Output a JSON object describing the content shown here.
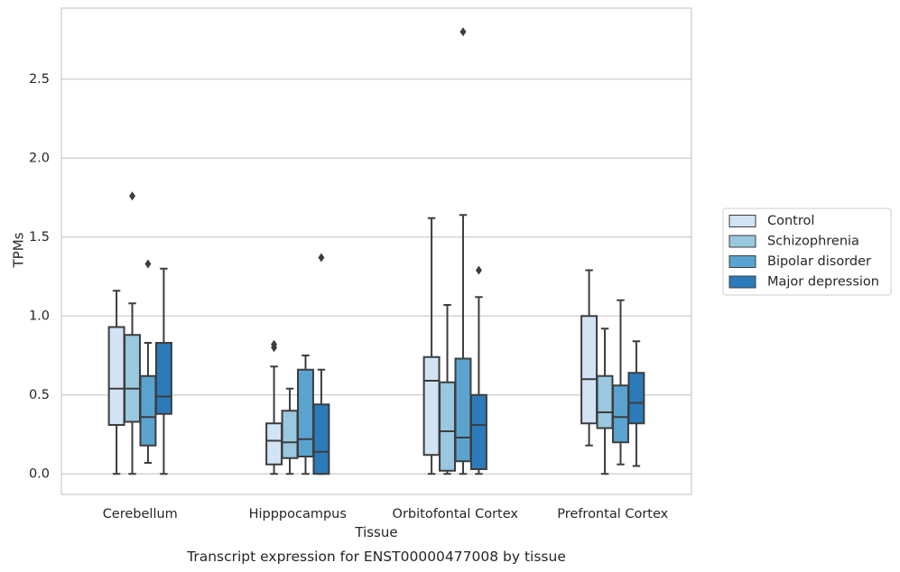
{
  "chart_data": {
    "type": "boxplot",
    "title": "",
    "caption": "Transcript expression for ENST00000477008 by tissue",
    "xlabel": "Tissue",
    "ylabel": "TPMs",
    "ylim": [
      -0.13,
      2.95
    ],
    "yticks": [
      0.0,
      0.5,
      1.0,
      1.5,
      2.0,
      2.5
    ],
    "ytick_labels": [
      "0.0",
      "0.5",
      "1.0",
      "1.5",
      "2.0",
      "2.5"
    ],
    "grid": "horizontal",
    "legend_position": "right",
    "categories": [
      "Cerebellum",
      "Hipppocampus",
      "Orbitofontal Cortex",
      "Prefrontal Cortex"
    ],
    "series": [
      {
        "name": "Control",
        "color": "#d2e3f3",
        "boxes": [
          {
            "whislo": 0.0,
            "q1": 0.31,
            "med": 0.54,
            "q3": 0.93,
            "whishi": 1.16,
            "fliers": []
          },
          {
            "whislo": 0.0,
            "q1": 0.06,
            "med": 0.21,
            "q3": 0.32,
            "whishi": 0.68,
            "fliers": [
              0.8,
              0.82
            ]
          },
          {
            "whislo": 0.0,
            "q1": 0.12,
            "med": 0.59,
            "q3": 0.74,
            "whishi": 1.62,
            "fliers": []
          },
          {
            "whislo": 0.18,
            "q1": 0.32,
            "med": 0.6,
            "q3": 1.0,
            "whishi": 1.29,
            "fliers": []
          }
        ]
      },
      {
        "name": "Schizophrenia",
        "color": "#9ac8e0",
        "boxes": [
          {
            "whislo": 0.0,
            "q1": 0.33,
            "med": 0.54,
            "q3": 0.88,
            "whishi": 1.08,
            "fliers": [
              1.76
            ]
          },
          {
            "whislo": 0.0,
            "q1": 0.1,
            "med": 0.2,
            "q3": 0.4,
            "whishi": 0.54,
            "fliers": []
          },
          {
            "whislo": 0.0,
            "q1": 0.02,
            "med": 0.27,
            "q3": 0.58,
            "whishi": 1.07,
            "fliers": []
          },
          {
            "whislo": 0.0,
            "q1": 0.29,
            "med": 0.39,
            "q3": 0.62,
            "whishi": 0.92,
            "fliers": []
          }
        ]
      },
      {
        "name": "Bipolar disorder",
        "color": "#5ba3cf",
        "boxes": [
          {
            "whislo": 0.07,
            "q1": 0.18,
            "med": 0.36,
            "q3": 0.62,
            "whishi": 0.83,
            "fliers": [
              1.33
            ]
          },
          {
            "whislo": 0.0,
            "q1": 0.11,
            "med": 0.22,
            "q3": 0.66,
            "whishi": 0.75,
            "fliers": []
          },
          {
            "whislo": 0.0,
            "q1": 0.08,
            "med": 0.23,
            "q3": 0.73,
            "whishi": 1.64,
            "fliers": [
              2.8
            ]
          },
          {
            "whislo": 0.06,
            "q1": 0.2,
            "med": 0.36,
            "q3": 0.56,
            "whishi": 1.1,
            "fliers": []
          }
        ]
      },
      {
        "name": "Major depression",
        "color": "#2b7bba",
        "boxes": [
          {
            "whislo": 0.0,
            "q1": 0.38,
            "med": 0.49,
            "q3": 0.83,
            "whishi": 1.3,
            "fliers": []
          },
          {
            "whislo": 0.0,
            "q1": 0.0,
            "med": 0.14,
            "q3": 0.44,
            "whishi": 0.66,
            "fliers": [
              1.37
            ]
          },
          {
            "whislo": 0.0,
            "q1": 0.03,
            "med": 0.31,
            "q3": 0.5,
            "whishi": 1.12,
            "fliers": [
              1.29
            ]
          },
          {
            "whislo": 0.05,
            "q1": 0.32,
            "med": 0.45,
            "q3": 0.64,
            "whishi": 0.84,
            "fliers": []
          }
        ]
      }
    ]
  }
}
